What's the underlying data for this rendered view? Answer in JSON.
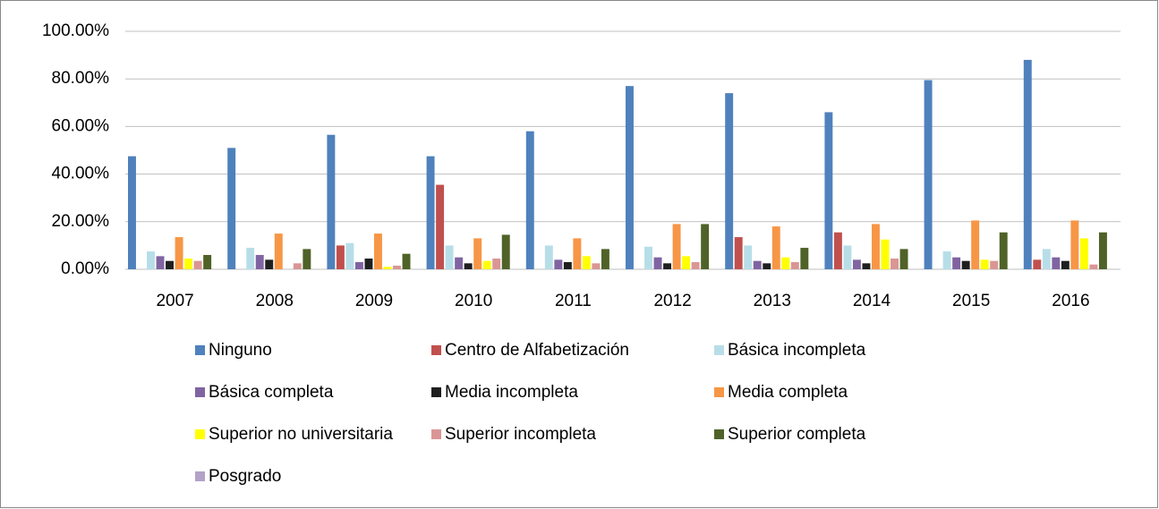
{
  "chart_data": {
    "type": "bar",
    "categories": [
      "2007",
      "2008",
      "2009",
      "2010",
      "2011",
      "2012",
      "2013",
      "2014",
      "2015",
      "2016"
    ],
    "series": [
      {
        "name": "Ninguno",
        "color": "#4f81bd",
        "values": [
          47.5,
          51,
          56.5,
          47.5,
          58,
          77,
          74,
          66,
          79.5,
          88
        ]
      },
      {
        "name": "Centro de Alfabetización",
        "color": "#c0504d",
        "values": [
          0,
          0,
          10,
          35.5,
          0,
          0,
          13.5,
          15.5,
          0,
          4
        ]
      },
      {
        "name": "Básica incompleta",
        "color": "#b7dee8",
        "values": [
          7.5,
          9,
          11,
          10,
          10,
          9.5,
          10,
          10,
          7.5,
          8.5
        ]
      },
      {
        "name": "Básica completa",
        "color": "#8064a2",
        "values": [
          5.5,
          6,
          3,
          5,
          4,
          5,
          3.5,
          4,
          5,
          5
        ]
      },
      {
        "name": "Media incompleta",
        "color": "#1f1f1f",
        "values": [
          3.5,
          4,
          4.5,
          2.5,
          3,
          2.5,
          2.5,
          2.5,
          3.5,
          3.5
        ]
      },
      {
        "name": "Media completa",
        "color": "#f79646",
        "values": [
          13.5,
          15,
          15,
          13,
          13,
          19,
          18,
          19,
          20.5,
          20.5
        ]
      },
      {
        "name": "Superior no universitaria",
        "color": "#ffff00",
        "values": [
          4.5,
          0,
          1,
          3.5,
          5.5,
          5.5,
          5,
          12.5,
          4,
          13
        ]
      },
      {
        "name": "Superior incompleta",
        "color": "#d99694",
        "values": [
          3.5,
          2.5,
          1.5,
          4.5,
          2.5,
          3,
          3,
          4.5,
          3.5,
          2
        ]
      },
      {
        "name": "Superior completa",
        "color": "#4f6228",
        "values": [
          6,
          8.5,
          6.5,
          14.5,
          8.5,
          19,
          9,
          8.5,
          15.5,
          15.5
        ]
      },
      {
        "name": "Posgrado",
        "color": "#b3a2c7",
        "values": [
          0,
          0,
          0,
          0,
          0,
          0,
          0,
          0,
          0,
          0
        ]
      }
    ],
    "ylim": [
      0,
      100
    ],
    "yticks": [
      {
        "value": 0,
        "label": "0.00%"
      },
      {
        "value": 20,
        "label": "20.00%"
      },
      {
        "value": 40,
        "label": "40.00%"
      },
      {
        "value": 60,
        "label": "60.00%"
      },
      {
        "value": 80,
        "label": "80.00%"
      },
      {
        "value": 100,
        "label": "100.00%"
      }
    ],
    "grid": true
  }
}
